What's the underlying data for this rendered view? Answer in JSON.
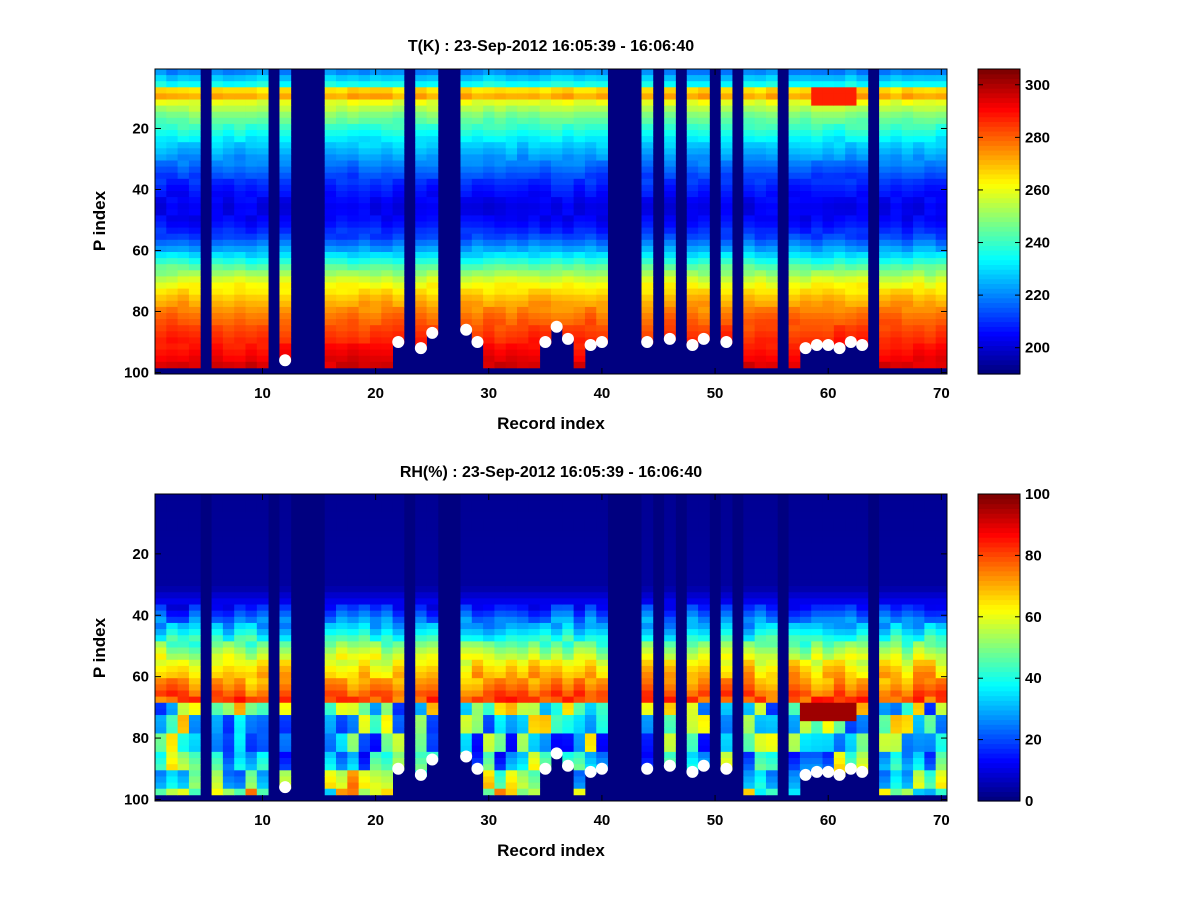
{
  "figure": {
    "background": "#ffffff",
    "colormap": "jet"
  },
  "chart_data": [
    {
      "type": "heatmap",
      "title": "T(K) : 23-Sep-2012 16:05:39 - 16:06:40",
      "xlabel": "Record index",
      "ylabel": "P index",
      "xlim": [
        0.5,
        70.5
      ],
      "ylim": [
        0.5,
        100.5
      ],
      "y_reversed": true,
      "x_ticks": [
        10,
        20,
        30,
        40,
        50,
        60,
        70
      ],
      "y_ticks": [
        20,
        40,
        60,
        80,
        100
      ],
      "colorbar": {
        "clim": [
          190,
          306
        ],
        "ticks": [
          200,
          220,
          240,
          260,
          280,
          300
        ]
      },
      "missing_records": [
        5,
        11,
        13,
        14,
        15,
        23,
        26,
        27,
        41,
        42,
        43,
        45,
        47,
        50,
        52,
        56,
        64
      ],
      "profile_bottom": 98,
      "surface_marker_records": [
        12,
        22,
        24,
        25,
        28,
        29,
        35,
        36,
        37,
        39,
        40,
        44,
        46,
        48,
        49,
        51,
        58,
        59,
        60,
        61,
        62,
        63
      ],
      "surface_markers_p": [
        96,
        90,
        92,
        87,
        86,
        90,
        90,
        85,
        89,
        91,
        90,
        90,
        89,
        91,
        89,
        90,
        92,
        91,
        91,
        92,
        90,
        91
      ],
      "values_by_p": {
        "p": [
          1,
          5,
          8,
          10,
          15,
          20,
          25,
          30,
          35,
          40,
          45,
          50,
          55,
          60,
          65,
          70,
          75,
          80,
          85,
          90,
          95,
          98
        ],
        "value": [
          220,
          235,
          282,
          262,
          248,
          238,
          228,
          220,
          212,
          206,
          202,
          204,
          212,
          226,
          244,
          260,
          270,
          278,
          284,
          289,
          294,
          297
        ]
      },
      "warm_layer": {
        "records": [
          59,
          62
        ],
        "p": [
          7,
          12
        ],
        "value": 288
      }
    },
    {
      "type": "heatmap",
      "title": "RH(%) : 23-Sep-2012 16:05:39 - 16:06:40",
      "xlabel": "Record index",
      "ylabel": "P index",
      "xlim": [
        0.5,
        70.5
      ],
      "ylim": [
        0.5,
        100.5
      ],
      "y_reversed": true,
      "x_ticks": [
        10,
        20,
        30,
        40,
        50,
        60,
        70
      ],
      "y_ticks": [
        20,
        40,
        60,
        80,
        100
      ],
      "colorbar": {
        "clim": [
          0,
          100
        ],
        "ticks": [
          0,
          20,
          40,
          60,
          80,
          100
        ]
      },
      "missing_records": [
        5,
        11,
        13,
        14,
        15,
        23,
        26,
        27,
        41,
        42,
        43,
        45,
        47,
        50,
        52,
        56,
        64
      ],
      "profile_bottom": 98,
      "surface_marker_records": [
        12,
        22,
        24,
        25,
        28,
        29,
        35,
        36,
        37,
        39,
        40,
        44,
        46,
        48,
        49,
        51,
        58,
        59,
        60,
        61,
        62,
        63
      ],
      "surface_markers_p": [
        96,
        90,
        92,
        87,
        86,
        90,
        90,
        85,
        89,
        91,
        90,
        90,
        89,
        91,
        89,
        90,
        92,
        91,
        91,
        92,
        90,
        91
      ],
      "values_by_p": {
        "p": [
          1,
          30,
          36,
          40,
          45,
          50,
          55,
          58,
          62,
          65,
          67,
          68,
          75,
          85,
          92,
          98
        ],
        "value": [
          2,
          3,
          12,
          22,
          35,
          50,
          62,
          68,
          72,
          78,
          80,
          45,
          42,
          38,
          48,
          55
        ]
      },
      "moist_layer": {
        "records": [
          58,
          62
        ],
        "p": [
          68,
          73
        ],
        "value": 97
      }
    }
  ]
}
